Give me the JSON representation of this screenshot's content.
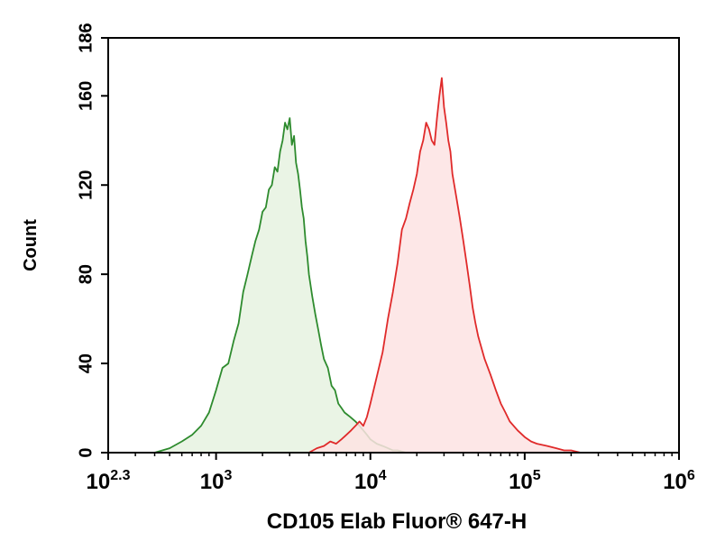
{
  "chart_data": {
    "type": "area",
    "x_scale": "log10",
    "xlim": [
      200,
      1000000
    ],
    "ylim": [
      0,
      186
    ],
    "xlabel": "CD105 Elab Fluor® 647-H",
    "ylabel": "Count",
    "x_ticks": [
      {
        "value": 200,
        "base": "10",
        "exp": "2.3"
      },
      {
        "value": 1000,
        "base": "10",
        "exp": "3"
      },
      {
        "value": 10000,
        "base": "10",
        "exp": "4"
      },
      {
        "value": 100000,
        "base": "10",
        "exp": "5"
      },
      {
        "value": 1000000,
        "base": "10",
        "exp": "6"
      }
    ],
    "y_ticks": [
      {
        "value": 0,
        "label": "0"
      },
      {
        "value": 40,
        "label": "40"
      },
      {
        "value": 80,
        "label": "80"
      },
      {
        "value": 120,
        "label": "120"
      },
      {
        "value": 160,
        "label": "160"
      },
      {
        "value": 186,
        "label": "186"
      }
    ],
    "grid": false,
    "legend": "none",
    "series": [
      {
        "color": "#2e8b2e",
        "fill": "#e6f2e1",
        "x": [
          400,
          500,
          600,
          700,
          800,
          900,
          1000,
          1100,
          1200,
          1300,
          1400,
          1500,
          1600,
          1700,
          1800,
          1900,
          2000,
          2100,
          2200,
          2300,
          2400,
          2500,
          2600,
          2700,
          2800,
          2900,
          3000,
          3100,
          3200,
          3300,
          3400,
          3500,
          3600,
          3700,
          3800,
          3900,
          4000,
          4200,
          4400,
          4600,
          4800,
          5000,
          5300,
          5600,
          5900,
          6200,
          6500,
          6800,
          7100,
          7400,
          7700,
          8000,
          8500,
          9000,
          9500,
          10000,
          11000,
          12000,
          13000,
          14000,
          15000,
          17000,
          20000
        ],
        "y": [
          0,
          2,
          5,
          8,
          12,
          18,
          28,
          38,
          40,
          50,
          58,
          72,
          80,
          88,
          95,
          100,
          108,
          110,
          118,
          120,
          128,
          126,
          135,
          140,
          148,
          145,
          150,
          138,
          142,
          130,
          125,
          118,
          110,
          105,
          95,
          88,
          80,
          70,
          62,
          55,
          48,
          42,
          38,
          30,
          28,
          22,
          20,
          18,
          17,
          16,
          15,
          14,
          12,
          10,
          8,
          6,
          4,
          3,
          2,
          1,
          1,
          0,
          0
        ]
      },
      {
        "color": "#e02a2a",
        "fill": "#fde3e3",
        "x": [
          4000,
          4500,
          5000,
          5500,
          6000,
          6500,
          7000,
          7500,
          8000,
          8500,
          9000,
          9500,
          10000,
          11000,
          12000,
          13000,
          14000,
          15000,
          16000,
          17000,
          18000,
          19000,
          20000,
          21000,
          22000,
          23000,
          24000,
          25000,
          26000,
          27000,
          28000,
          29000,
          30000,
          31000,
          32000,
          33000,
          34000,
          36000,
          38000,
          40000,
          42000,
          44000,
          46000,
          48000,
          50000,
          55000,
          60000,
          65000,
          70000,
          75000,
          80000,
          90000,
          100000,
          110000,
          120000,
          140000,
          160000,
          180000,
          200000,
          230000
        ],
        "y": [
          0,
          2,
          3,
          5,
          4,
          6,
          8,
          10,
          12,
          14,
          12,
          16,
          22,
          34,
          45,
          60,
          72,
          85,
          100,
          105,
          112,
          118,
          125,
          135,
          140,
          148,
          145,
          140,
          138,
          150,
          160,
          168,
          155,
          148,
          140,
          135,
          125,
          115,
          105,
          95,
          85,
          75,
          65,
          58,
          52,
          42,
          35,
          28,
          22,
          18,
          14,
          10,
          7,
          5,
          4,
          3,
          2,
          1,
          1,
          0
        ]
      }
    ]
  }
}
